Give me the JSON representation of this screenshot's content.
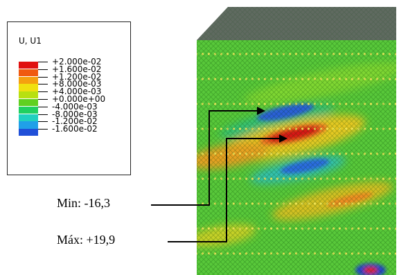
{
  "legend": {
    "title": "U, U1",
    "values": [
      "+2.000e-02",
      "+1.600e-02",
      "+1.200e-02",
      "+8.000e-03",
      "+4.000e-03",
      "+0.000e+00",
      "-4.000e-03",
      "-8.000e-03",
      "-1.200e-02",
      "-1.600e-02"
    ],
    "colors": [
      "#e01010",
      "#f05a10",
      "#f5a010",
      "#f0e010",
      "#b8e010",
      "#60d020",
      "#20d060",
      "#20d0c0",
      "#20a0e8",
      "#2050d8"
    ]
  },
  "annotations": {
    "min_label": "Min: -16,3",
    "max_label": "Máx: +19,9"
  }
}
